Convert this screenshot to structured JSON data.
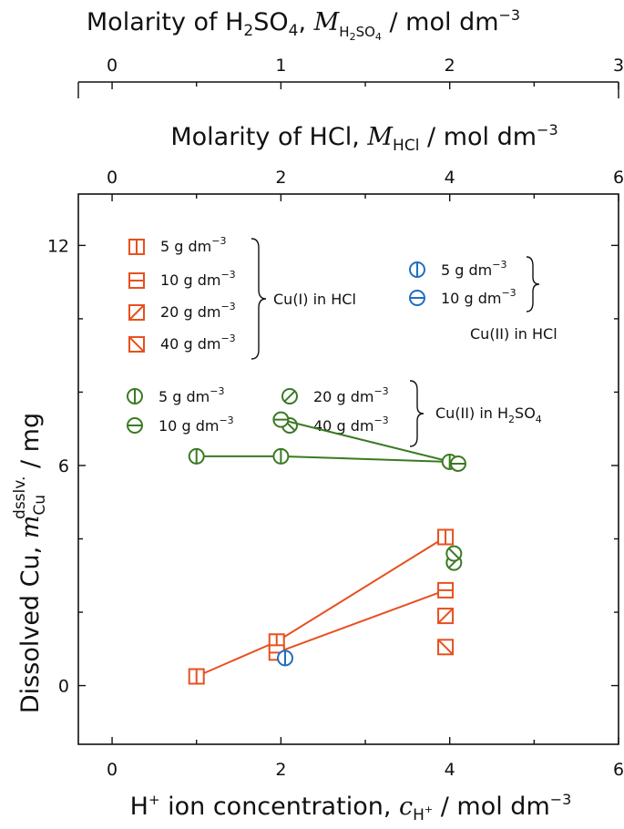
{
  "chart_data": {
    "type": "scatter",
    "xlabel": {
      "main": "H",
      "sup": "+",
      "rest": " ion concentration, ",
      "var": "c",
      "sub_main": "H",
      "sub_sup": "+",
      "units": " / mol dm",
      "units_exp": "−3"
    },
    "ylabel": {
      "main": "Dissolved Cu, ",
      "var": "m",
      "sub": "Cu",
      "sup": "dsslv.",
      "units": " / mg"
    },
    "top_axis_hcl": {
      "main": "Molarity of HCl, ",
      "var": "M",
      "sub": "HCl",
      "units": " / mol dm",
      "units_exp": "−3",
      "ticks": [
        "0",
        "2",
        "4",
        "6"
      ]
    },
    "top_axis_h2so4": {
      "main_a": "Molarity of H",
      "sub_a": "2",
      "main_b": "SO",
      "sub_b": "4",
      "comma": ", ",
      "var": "M",
      "var_sub_a": "H",
      "var_sub_sub_a": "2",
      "var_sub_b": "SO",
      "var_sub_sub_b": "4",
      "units": " / mol dm",
      "units_exp": "−3",
      "ticks": [
        "0",
        "1",
        "2",
        "3"
      ]
    },
    "xlim": [
      -0.4,
      6
    ],
    "ylim": [
      -1.6,
      13.4
    ],
    "x_ticks": [
      "0",
      "2",
      "4",
      "6"
    ],
    "y_ticks": [
      "0",
      "6",
      "12"
    ],
    "legend": {
      "cu1_hcl": {
        "items": [
          {
            "label": "5 g dm",
            "exp": "−3"
          },
          {
            "label": "10 g dm",
            "exp": "−3"
          },
          {
            "label": "20 g dm",
            "exp": "−3"
          },
          {
            "label": "40 g dm",
            "exp": "−3"
          }
        ],
        "group": "Cu(I) in HCl"
      },
      "cu2_hcl": {
        "items": [
          {
            "label": "5 g dm",
            "exp": "−3"
          },
          {
            "label": "10 g dm",
            "exp": "−3"
          }
        ],
        "group": "Cu(II) in HCl"
      },
      "cu2_h2so4": {
        "items": [
          {
            "label": "5 g dm",
            "exp": "−3"
          },
          {
            "label": "10 g dm",
            "exp": "−3"
          },
          {
            "label": "20 g dm",
            "exp": "−3"
          },
          {
            "label": "40 g dm",
            "exp": "−3"
          }
        ],
        "group_main": "Cu(II) in H",
        "group_sub_a": "2",
        "group_mid": "SO",
        "group_sub_b": "4"
      }
    },
    "series": [
      {
        "name": "Cu(I) in HCl, 5 g dm-3",
        "marker": "square-vline",
        "color": "#e8501e",
        "x": [
          1.0,
          1.95,
          3.95
        ],
        "y": [
          0.25,
          1.2,
          4.05
        ],
        "connect": true
      },
      {
        "name": "Cu(I) in HCl, 10 g dm-3",
        "marker": "square-hline",
        "color": "#e8501e",
        "x": [
          1.95,
          3.95
        ],
        "y": [
          0.9,
          2.6
        ],
        "connect": true
      },
      {
        "name": "Cu(I) in HCl, 20 g dm-3",
        "marker": "square-slash",
        "color": "#e8501e",
        "x": [
          3.95
        ],
        "y": [
          1.9
        ],
        "connect": false
      },
      {
        "name": "Cu(I) in HCl, 40 g dm-3",
        "marker": "square-backslash",
        "color": "#e8501e",
        "x": [
          3.95
        ],
        "y": [
          1.05
        ],
        "connect": false
      },
      {
        "name": "Cu(II) in HCl, 5 g dm-3",
        "marker": "circle-vline",
        "color": "#1f6fc0",
        "x": [
          2.05
        ],
        "y": [
          0.75
        ],
        "connect": false
      },
      {
        "name": "Cu(II) in H2SO4, 5 g dm-3",
        "marker": "circle-vline",
        "color": "#3a7a22",
        "x": [
          1.0,
          2.0,
          4.0
        ],
        "y": [
          6.25,
          6.25,
          6.1
        ],
        "connect": true
      },
      {
        "name": "Cu(II) in H2SO4, 10 g dm-3",
        "marker": "circle-hline",
        "color": "#3a7a22",
        "x": [
          2.0,
          4.1
        ],
        "y": [
          7.25,
          6.05
        ],
        "connect": true
      },
      {
        "name": "Cu(II) in H2SO4, 20 g dm-3",
        "marker": "circle-slash",
        "color": "#3a7a22",
        "x": [
          4.05
        ],
        "y": [
          3.35
        ],
        "connect": false
      },
      {
        "name": "Cu(II) in H2SO4, 40 g dm-3",
        "marker": "circle-backslash",
        "color": "#3a7a22",
        "x": [
          4.05
        ],
        "y": [
          3.6
        ],
        "connect": false
      }
    ]
  }
}
